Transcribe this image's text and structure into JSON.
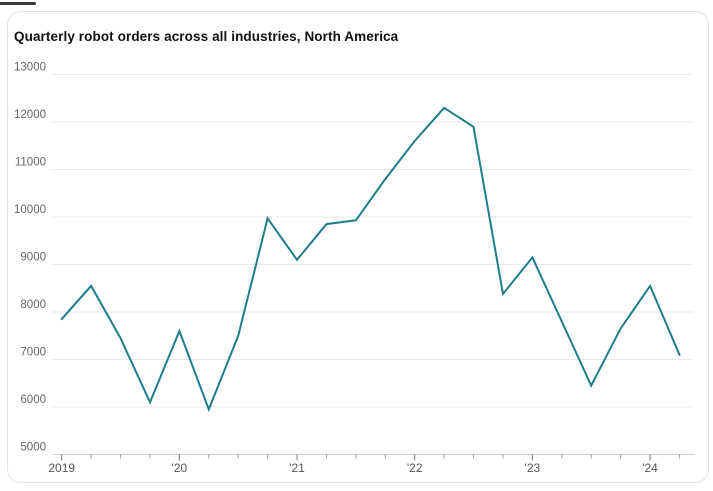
{
  "page": {
    "kind": "chart-card"
  },
  "chart_data": {
    "type": "line",
    "title": "Quarterly robot orders across all industries, North America",
    "x": [
      "2019 Q1",
      "2019 Q2",
      "2019 Q3",
      "2019 Q4",
      "2020 Q1",
      "2020 Q2",
      "2020 Q3",
      "2020 Q4",
      "2021 Q1",
      "2021 Q2",
      "2021 Q3",
      "2021 Q4",
      "2022 Q1",
      "2022 Q2",
      "2022 Q3",
      "2022 Q4",
      "2023 Q1",
      "2023 Q2",
      "2023 Q3",
      "2023 Q4",
      "2024 Q1",
      "2024 Q2"
    ],
    "series": [
      {
        "name": "Quarterly robot orders",
        "values": [
          7850,
          8550,
          7450,
          6100,
          7600,
          5950,
          7500,
          9970,
          9100,
          9850,
          9930,
          10800,
          11600,
          12300,
          11900,
          8380,
          9150,
          7800,
          6450,
          7650,
          8550,
          7100
        ]
      }
    ],
    "xlabel": "",
    "ylabel": "",
    "x_axis": {
      "year_labels": [
        "2019",
        "'20",
        "'21",
        "'22",
        "'23",
        "'24"
      ],
      "year_tick_indices": [
        0,
        4,
        8,
        12,
        16,
        20
      ],
      "minor_ticks": "quarterly"
    },
    "y_axis": {
      "min": 5000,
      "max": 13000,
      "step": 1000,
      "ticks": [
        13000,
        12000,
        11000,
        10000,
        9000,
        8000,
        7000,
        6000,
        5000
      ]
    },
    "ylim": [
      5000,
      13000
    ],
    "grid": "horizontal",
    "legend": "none",
    "colors": {
      "line": "#1e7d8d",
      "grid": "#e9e9e9",
      "baseline": "#cfcfcf",
      "tick": "#999999",
      "y_label": "#666666",
      "x_label": "#555555",
      "title": "#111111",
      "card_border": "#e3e3e3",
      "background": "#ffffff"
    }
  }
}
